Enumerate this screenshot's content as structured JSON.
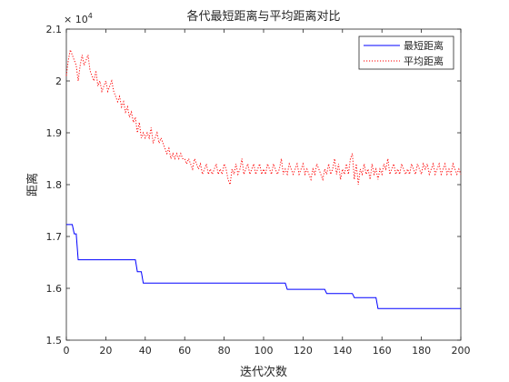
{
  "chart_data": {
    "type": "line",
    "title": "各代最短距离与平均距离对比",
    "xlabel": "迭代次数",
    "ylabel": "距离",
    "exponent_label": "× 10",
    "exponent_power": "4",
    "xlim": [
      0,
      200
    ],
    "ylim": [
      1.5,
      2.1
    ],
    "x_ticks": [
      0,
      20,
      40,
      60,
      80,
      100,
      120,
      140,
      160,
      180,
      200
    ],
    "x_tick_labels": [
      "0",
      "20",
      "40",
      "60",
      "80",
      "100",
      "120",
      "140",
      "160",
      "180",
      "200"
    ],
    "y_ticks": [
      1.5,
      1.6,
      1.7,
      1.8,
      1.9,
      2.0,
      2.1
    ],
    "y_tick_labels": [
      "1.5",
      "1.6",
      "1.7",
      "1.8",
      "1.9",
      "2",
      "2.1"
    ],
    "grid": false,
    "legend_position": "top-right",
    "series": [
      {
        "name": "最短距离",
        "color": "#0000ff",
        "style": "solid",
        "points": [
          [
            0,
            1.723
          ],
          [
            3,
            1.723
          ],
          [
            4,
            1.705
          ],
          [
            5,
            1.705
          ],
          [
            6,
            1.655
          ],
          [
            35,
            1.655
          ],
          [
            36,
            1.632
          ],
          [
            38,
            1.632
          ],
          [
            39,
            1.61
          ],
          [
            111,
            1.61
          ],
          [
            112,
            1.598
          ],
          [
            131,
            1.598
          ],
          [
            132,
            1.59
          ],
          [
            145,
            1.59
          ],
          [
            146,
            1.582
          ],
          [
            157,
            1.582
          ],
          [
            158,
            1.561
          ],
          [
            200,
            1.561
          ]
        ]
      },
      {
        "name": "平均距离",
        "color": "#ff0000",
        "style": "dotted",
        "points": [
          [
            0,
            2.01
          ],
          [
            1,
            2.04
          ],
          [
            2,
            2.06
          ],
          [
            3,
            2.05
          ],
          [
            4,
            2.04
          ],
          [
            5,
            2.03
          ],
          [
            6,
            2.0
          ],
          [
            7,
            2.03
          ],
          [
            8,
            2.05
          ],
          [
            9,
            2.03
          ],
          [
            10,
            2.04
          ],
          [
            11,
            2.05
          ],
          [
            12,
            2.02
          ],
          [
            13,
            2.01
          ],
          [
            14,
            2.0
          ],
          [
            15,
            2.02
          ],
          [
            16,
            1.99
          ],
          [
            17,
            2.0
          ],
          [
            18,
            1.98
          ],
          [
            19,
            1.99
          ],
          [
            20,
            2.0
          ],
          [
            21,
            1.98
          ],
          [
            22,
            1.99
          ],
          [
            23,
            2.0
          ],
          [
            24,
            1.98
          ],
          [
            25,
            1.97
          ],
          [
            26,
            1.96
          ],
          [
            27,
            1.97
          ],
          [
            28,
            1.95
          ],
          [
            29,
            1.96
          ],
          [
            30,
            1.94
          ],
          [
            31,
            1.95
          ],
          [
            32,
            1.93
          ],
          [
            33,
            1.94
          ],
          [
            34,
            1.92
          ],
          [
            35,
            1.93
          ],
          [
            36,
            1.9
          ],
          [
            37,
            1.92
          ],
          [
            38,
            1.89
          ],
          [
            39,
            1.9
          ],
          [
            40,
            1.89
          ],
          [
            41,
            1.9
          ],
          [
            42,
            1.89
          ],
          [
            43,
            1.91
          ],
          [
            44,
            1.88
          ],
          [
            45,
            1.89
          ],
          [
            46,
            1.9
          ],
          [
            47,
            1.88
          ],
          [
            48,
            1.89
          ],
          [
            49,
            1.88
          ],
          [
            50,
            1.87
          ],
          [
            51,
            1.86
          ],
          [
            52,
            1.87
          ],
          [
            53,
            1.85
          ],
          [
            54,
            1.86
          ],
          [
            55,
            1.85
          ],
          [
            56,
            1.86
          ],
          [
            57,
            1.85
          ],
          [
            58,
            1.86
          ],
          [
            59,
            1.85
          ],
          [
            60,
            1.85
          ],
          [
            61,
            1.84
          ],
          [
            62,
            1.85
          ],
          [
            63,
            1.84
          ],
          [
            64,
            1.83
          ],
          [
            65,
            1.85
          ],
          [
            66,
            1.84
          ],
          [
            67,
            1.83
          ],
          [
            68,
            1.84
          ],
          [
            69,
            1.82
          ],
          [
            70,
            1.83
          ],
          [
            71,
            1.84
          ],
          [
            72,
            1.82
          ],
          [
            73,
            1.83
          ],
          [
            74,
            1.82
          ],
          [
            75,
            1.83
          ],
          [
            76,
            1.84
          ],
          [
            77,
            1.82
          ],
          [
            78,
            1.83
          ],
          [
            79,
            1.82
          ],
          [
            80,
            1.84
          ],
          [
            81,
            1.83
          ],
          [
            82,
            1.81
          ],
          [
            83,
            1.8
          ],
          [
            84,
            1.83
          ],
          [
            85,
            1.82
          ],
          [
            86,
            1.84
          ],
          [
            87,
            1.82
          ],
          [
            88,
            1.83
          ],
          [
            89,
            1.85
          ],
          [
            90,
            1.82
          ],
          [
            91,
            1.83
          ],
          [
            92,
            1.84
          ],
          [
            93,
            1.82
          ],
          [
            94,
            1.83
          ],
          [
            95,
            1.84
          ],
          [
            96,
            1.82
          ],
          [
            97,
            1.83
          ],
          [
            98,
            1.84
          ],
          [
            99,
            1.82
          ],
          [
            100,
            1.83
          ],
          [
            101,
            1.82
          ],
          [
            102,
            1.84
          ],
          [
            103,
            1.83
          ],
          [
            104,
            1.82
          ],
          [
            105,
            1.84
          ],
          [
            106,
            1.83
          ],
          [
            107,
            1.82
          ],
          [
            108,
            1.83
          ],
          [
            109,
            1.85
          ],
          [
            110,
            1.82
          ],
          [
            111,
            1.83
          ],
          [
            112,
            1.82
          ],
          [
            113,
            1.84
          ],
          [
            114,
            1.83
          ],
          [
            115,
            1.82
          ],
          [
            116,
            1.83
          ],
          [
            117,
            1.84
          ],
          [
            118,
            1.82
          ],
          [
            119,
            1.83
          ],
          [
            120,
            1.84
          ],
          [
            121,
            1.82
          ],
          [
            122,
            1.83
          ],
          [
            123,
            1.82
          ],
          [
            124,
            1.81
          ],
          [
            125,
            1.83
          ],
          [
            126,
            1.82
          ],
          [
            127,
            1.84
          ],
          [
            128,
            1.83
          ],
          [
            129,
            1.82
          ],
          [
            130,
            1.81
          ],
          [
            131,
            1.83
          ],
          [
            132,
            1.82
          ],
          [
            133,
            1.84
          ],
          [
            134,
            1.82
          ],
          [
            135,
            1.83
          ],
          [
            136,
            1.85
          ],
          [
            137,
            1.82
          ],
          [
            138,
            1.84
          ],
          [
            139,
            1.81
          ],
          [
            140,
            1.83
          ],
          [
            141,
            1.82
          ],
          [
            142,
            1.84
          ],
          [
            143,
            1.82
          ],
          [
            144,
            1.85
          ],
          [
            145,
            1.86
          ],
          [
            146,
            1.81
          ],
          [
            147,
            1.84
          ],
          [
            148,
            1.8
          ],
          [
            149,
            1.83
          ],
          [
            150,
            1.82
          ],
          [
            151,
            1.84
          ],
          [
            152,
            1.82
          ],
          [
            153,
            1.83
          ],
          [
            154,
            1.81
          ],
          [
            155,
            1.84
          ],
          [
            156,
            1.82
          ],
          [
            157,
            1.83
          ],
          [
            158,
            1.81
          ],
          [
            159,
            1.83
          ],
          [
            160,
            1.82
          ],
          [
            161,
            1.84
          ],
          [
            162,
            1.83
          ],
          [
            163,
            1.85
          ],
          [
            164,
            1.82
          ],
          [
            165,
            1.83
          ],
          [
            166,
            1.84
          ],
          [
            167,
            1.82
          ],
          [
            168,
            1.83
          ],
          [
            169,
            1.82
          ],
          [
            170,
            1.84
          ],
          [
            171,
            1.83
          ],
          [
            172,
            1.82
          ],
          [
            173,
            1.83
          ],
          [
            174,
            1.82
          ],
          [
            175,
            1.84
          ],
          [
            176,
            1.83
          ],
          [
            177,
            1.82
          ],
          [
            178,
            1.84
          ],
          [
            179,
            1.83
          ],
          [
            180,
            1.82
          ],
          [
            181,
            1.84
          ],
          [
            182,
            1.83
          ],
          [
            183,
            1.84
          ],
          [
            184,
            1.82
          ],
          [
            185,
            1.83
          ],
          [
            186,
            1.84
          ],
          [
            187,
            1.82
          ],
          [
            188,
            1.83
          ],
          [
            189,
            1.84
          ],
          [
            190,
            1.82
          ],
          [
            191,
            1.83
          ],
          [
            192,
            1.84
          ],
          [
            193,
            1.82
          ],
          [
            194,
            1.83
          ],
          [
            195,
            1.82
          ],
          [
            196,
            1.84
          ],
          [
            197,
            1.83
          ],
          [
            198,
            1.82
          ],
          [
            199,
            1.83
          ],
          [
            200,
            1.82
          ]
        ]
      }
    ]
  }
}
